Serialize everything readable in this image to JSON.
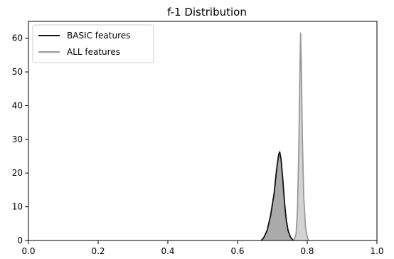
{
  "chart_data": {
    "type": "area",
    "title": "f-1 Distribution",
    "xlabel": "",
    "ylabel": "",
    "xlim": [
      0.0,
      1.0
    ],
    "ylim": [
      0,
      65
    ],
    "x_ticks": [
      "0.0",
      "0.2",
      "0.4",
      "0.6",
      "0.8",
      "1.0"
    ],
    "y_ticks": [
      "0",
      "10",
      "20",
      "30",
      "40",
      "50",
      "60"
    ],
    "legend_position": "top-left",
    "grid": false,
    "series": [
      {
        "name": "BASIC features",
        "color": "#111111",
        "fill": "#aaaaaa",
        "points": [
          [
            0.668,
            0
          ],
          [
            0.675,
            0.8
          ],
          [
            0.685,
            3
          ],
          [
            0.695,
            7.5
          ],
          [
            0.705,
            14
          ],
          [
            0.712,
            21
          ],
          [
            0.718,
            25.5
          ],
          [
            0.721,
            26.3
          ],
          [
            0.725,
            24
          ],
          [
            0.73,
            18
          ],
          [
            0.735,
            11
          ],
          [
            0.74,
            6
          ],
          [
            0.745,
            3
          ],
          [
            0.752,
            1
          ],
          [
            0.76,
            0
          ]
        ]
      },
      {
        "name": "ALL features",
        "color": "#999999",
        "fill": "#d4d4d4",
        "points": [
          [
            0.762,
            0
          ],
          [
            0.768,
            2
          ],
          [
            0.772,
            9
          ],
          [
            0.776,
            28
          ],
          [
            0.779,
            50
          ],
          [
            0.781,
            61.5
          ],
          [
            0.783,
            52
          ],
          [
            0.786,
            30
          ],
          [
            0.79,
            13
          ],
          [
            0.795,
            4
          ],
          [
            0.8,
            1
          ],
          [
            0.805,
            0
          ]
        ]
      }
    ]
  }
}
